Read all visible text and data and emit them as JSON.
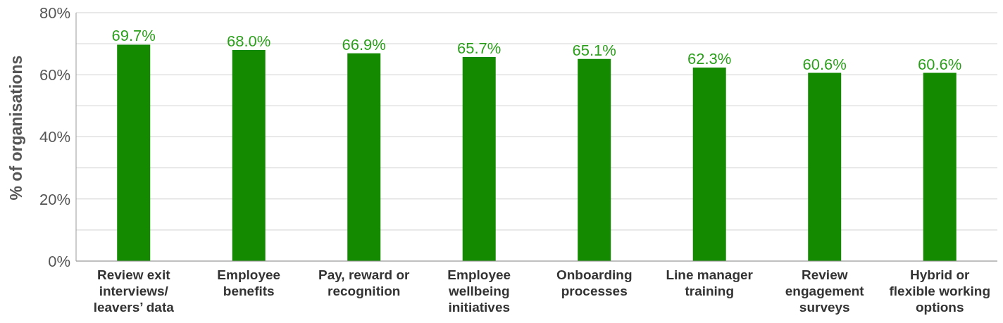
{
  "chart_data": {
    "type": "bar",
    "ylabel": "% of organisations",
    "categories": [
      "Review exit interviews/ leavers’ data",
      "Employee benefits",
      "Pay, reward or recognition",
      "Employee wellbeing initiatives",
      "Onboarding processes",
      "Line manager training",
      "Review engagement surveys",
      "Hybrid or flexible working options"
    ],
    "values": [
      69.7,
      68.0,
      66.9,
      65.7,
      65.1,
      62.3,
      60.6,
      60.6
    ],
    "value_labels": [
      "69.7%",
      "68.0%",
      "66.9%",
      "65.7%",
      "65.1%",
      "62.3%",
      "60.6%",
      "60.6%"
    ],
    "color": "#138a00",
    "ylim": [
      0,
      80
    ],
    "yticks": [
      {
        "value": 0,
        "label": "0%"
      },
      {
        "value": 10,
        "label": null
      },
      {
        "value": 20,
        "label": "20%"
      },
      {
        "value": 30,
        "label": null
      },
      {
        "value": 40,
        "label": "40%"
      },
      {
        "value": 50,
        "label": null
      },
      {
        "value": 60,
        "label": "60%"
      },
      {
        "value": 70,
        "label": null
      },
      {
        "value": 80,
        "label": "80%"
      }
    ],
    "grid": "y"
  }
}
